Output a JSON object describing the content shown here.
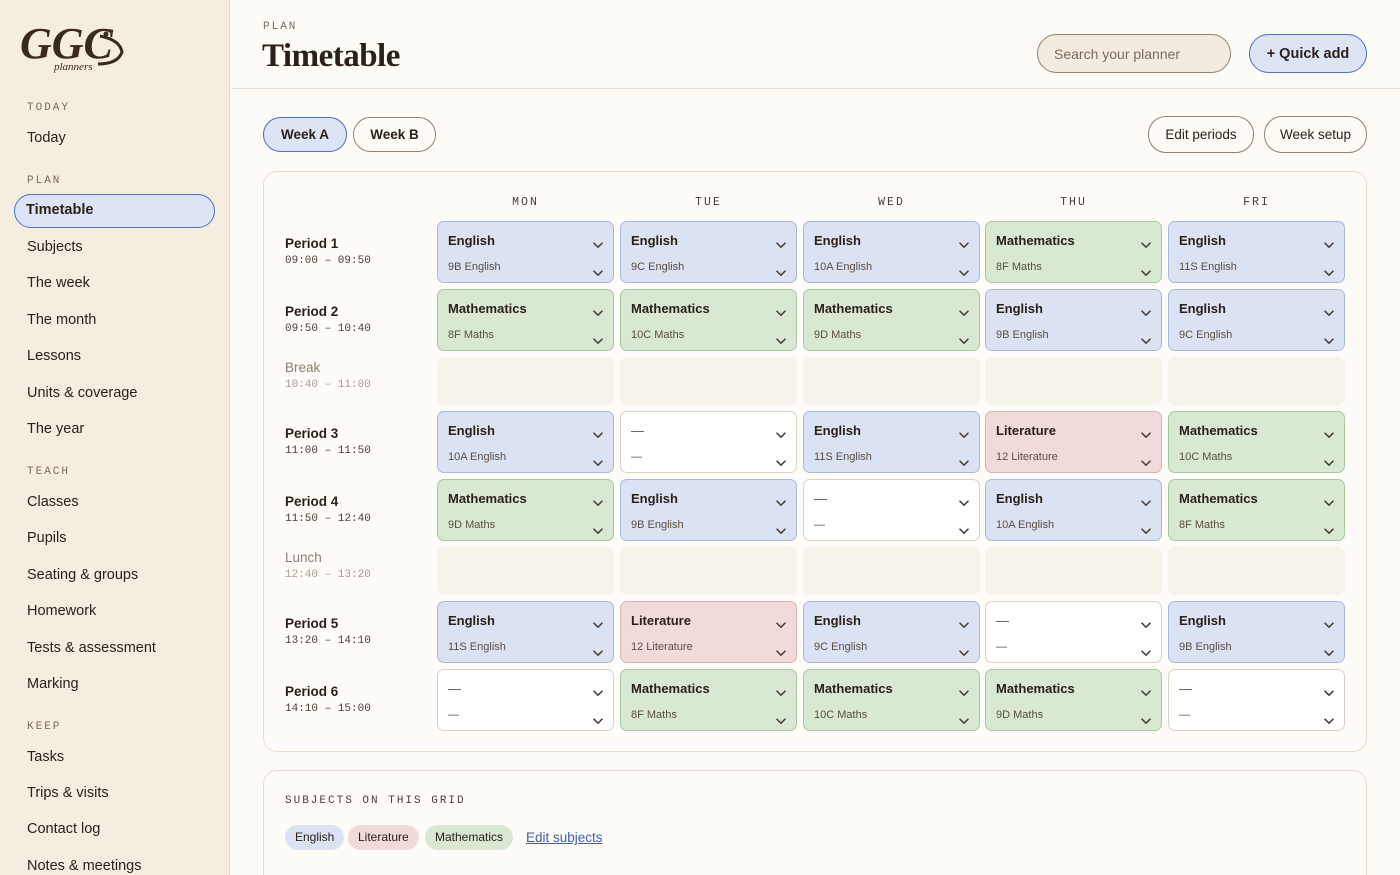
{
  "sidebar": {
    "sections": [
      {
        "heading": "TODAY",
        "items": [
          "Today"
        ]
      },
      {
        "heading": "PLAN",
        "items": [
          "Timetable",
          "Subjects",
          "The week",
          "The month",
          "Lessons",
          "Units & coverage",
          "The year"
        ]
      },
      {
        "heading": "TEACH",
        "items": [
          "Classes",
          "Pupils",
          "Seating & groups",
          "Homework",
          "Tests & assessment",
          "Marking"
        ]
      },
      {
        "heading": "KEEP",
        "items": [
          "Tasks",
          "Trips & visits",
          "Contact log",
          "Notes & meetings"
        ]
      }
    ],
    "active": "Timetable"
  },
  "header": {
    "eyebrow": "PLAN",
    "title": "Timetable",
    "search_placeholder": "Search your planner",
    "quick_add_label": "+ Quick add"
  },
  "toolbar": {
    "week_a": "Week A",
    "week_b": "Week B",
    "active_week": "Week A",
    "edit_periods": "Edit periods",
    "week_setup": "Week setup"
  },
  "timetable": {
    "days": [
      "MON",
      "TUE",
      "WED",
      "THU",
      "FRI"
    ],
    "rows": [
      {
        "name": "Period 1",
        "time": "09:00 – 09:50",
        "type": "period",
        "cells": [
          {
            "subject": "English",
            "class": "9B English",
            "kind": "english"
          },
          {
            "subject": "English",
            "class": "9C English",
            "kind": "english"
          },
          {
            "subject": "English",
            "class": "10A English",
            "kind": "english"
          },
          {
            "subject": "Mathematics",
            "class": "8F Maths",
            "kind": "maths"
          },
          {
            "subject": "English",
            "class": "11S English",
            "kind": "english"
          }
        ]
      },
      {
        "name": "Period 2",
        "time": "09:50 – 10:40",
        "type": "period",
        "cells": [
          {
            "subject": "Mathematics",
            "class": "8F Maths",
            "kind": "maths"
          },
          {
            "subject": "Mathematics",
            "class": "10C Maths",
            "kind": "maths"
          },
          {
            "subject": "Mathematics",
            "class": "9D Maths",
            "kind": "maths"
          },
          {
            "subject": "English",
            "class": "9B English",
            "kind": "english"
          },
          {
            "subject": "English",
            "class": "9C English",
            "kind": "english"
          }
        ]
      },
      {
        "name": "Break",
        "time": "10:40 – 11:00",
        "type": "break"
      },
      {
        "name": "Period 3",
        "time": "11:00 – 11:50",
        "type": "period",
        "cells": [
          {
            "subject": "English",
            "class": "10A English",
            "kind": "english"
          },
          {
            "subject": "—",
            "class": "—",
            "kind": "empty"
          },
          {
            "subject": "English",
            "class": "11S English",
            "kind": "english"
          },
          {
            "subject": "Literature",
            "class": "12 Literature",
            "kind": "lit"
          },
          {
            "subject": "Mathematics",
            "class": "10C Maths",
            "kind": "maths"
          }
        ]
      },
      {
        "name": "Period 4",
        "time": "11:50 – 12:40",
        "type": "period",
        "cells": [
          {
            "subject": "Mathematics",
            "class": "9D Maths",
            "kind": "maths"
          },
          {
            "subject": "English",
            "class": "9B English",
            "kind": "english"
          },
          {
            "subject": "—",
            "class": "—",
            "kind": "empty"
          },
          {
            "subject": "English",
            "class": "10A English",
            "kind": "english"
          },
          {
            "subject": "Mathematics",
            "class": "8F Maths",
            "kind": "maths"
          }
        ]
      },
      {
        "name": "Lunch",
        "time": "12:40 – 13:20",
        "type": "break"
      },
      {
        "name": "Period 5",
        "time": "13:20 – 14:10",
        "type": "period",
        "cells": [
          {
            "subject": "English",
            "class": "11S English",
            "kind": "english"
          },
          {
            "subject": "Literature",
            "class": "12 Literature",
            "kind": "lit"
          },
          {
            "subject": "English",
            "class": "9C English",
            "kind": "english"
          },
          {
            "subject": "—",
            "class": "—",
            "kind": "empty"
          },
          {
            "subject": "English",
            "class": "9B English",
            "kind": "english"
          }
        ]
      },
      {
        "name": "Period 6",
        "time": "14:10 – 15:00",
        "type": "period",
        "cells": [
          {
            "subject": "—",
            "class": "—",
            "kind": "empty"
          },
          {
            "subject": "Mathematics",
            "class": "8F Maths",
            "kind": "maths"
          },
          {
            "subject": "Mathematics",
            "class": "10C Maths",
            "kind": "maths"
          },
          {
            "subject": "Mathematics",
            "class": "9D Maths",
            "kind": "maths"
          },
          {
            "subject": "—",
            "class": "—",
            "kind": "empty"
          }
        ]
      }
    ]
  },
  "subjects_panel": {
    "title": "SUBJECTS ON THIS GRID",
    "chips": [
      {
        "label": "English",
        "kind": "english"
      },
      {
        "label": "Literature",
        "kind": "lit"
      },
      {
        "label": "Mathematics",
        "kind": "maths"
      }
    ],
    "edit_link": "Edit subjects"
  },
  "colors": {
    "english": "#dbe2f4",
    "mathematics": "#d8e8d3",
    "literature": "#f1dada",
    "accent": "#4d6ec9",
    "sidebar_bg": "#f6ede1"
  }
}
